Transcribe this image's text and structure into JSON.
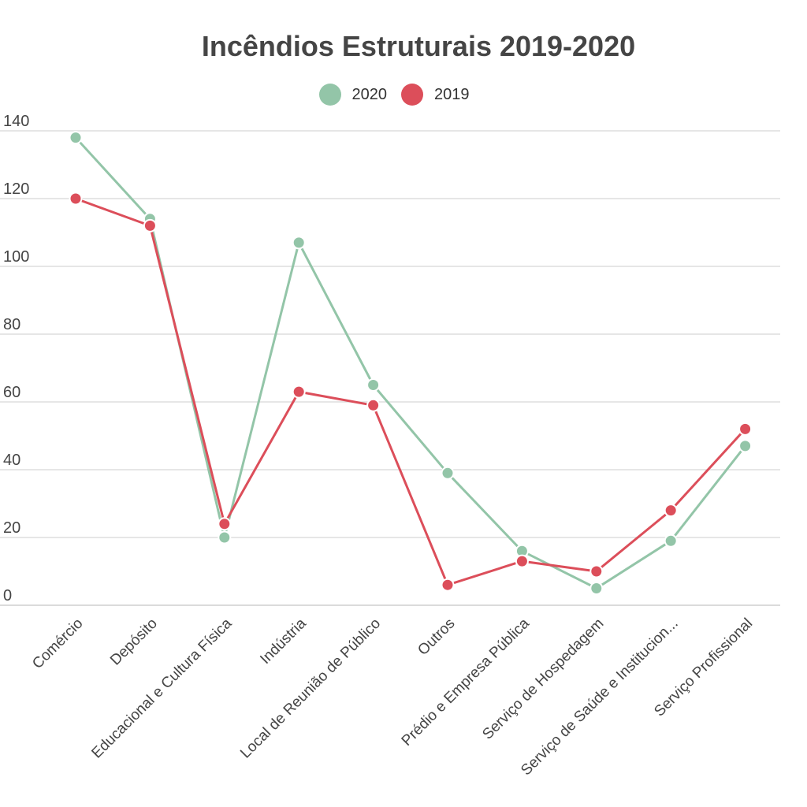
{
  "chart_data": {
    "type": "line",
    "title": "Incêndios Estruturais 2019-2020",
    "categories": [
      "Comércio",
      "Depósito",
      "Educacional e Cultura Física",
      "Indústria",
      "Local de Reunião de Público",
      "Outros",
      "Prédio e Empresa Pública",
      "Serviço de Hospedagem",
      "Serviço de Saúde e Institucion...",
      "Serviço Profissional"
    ],
    "series": [
      {
        "name": "2020",
        "color": "#93c5a8",
        "values": [
          138,
          114,
          20,
          107,
          65,
          39,
          16,
          5,
          19,
          47
        ]
      },
      {
        "name": "2019",
        "color": "#dc4e5a",
        "values": [
          120,
          112,
          24,
          63,
          59,
          6,
          13,
          10,
          28,
          52
        ]
      }
    ],
    "yticks": [
      0,
      20,
      40,
      60,
      80,
      100,
      120,
      140
    ],
    "ylim": [
      0,
      140
    ],
    "grid": true,
    "legend_position": "top-center"
  }
}
